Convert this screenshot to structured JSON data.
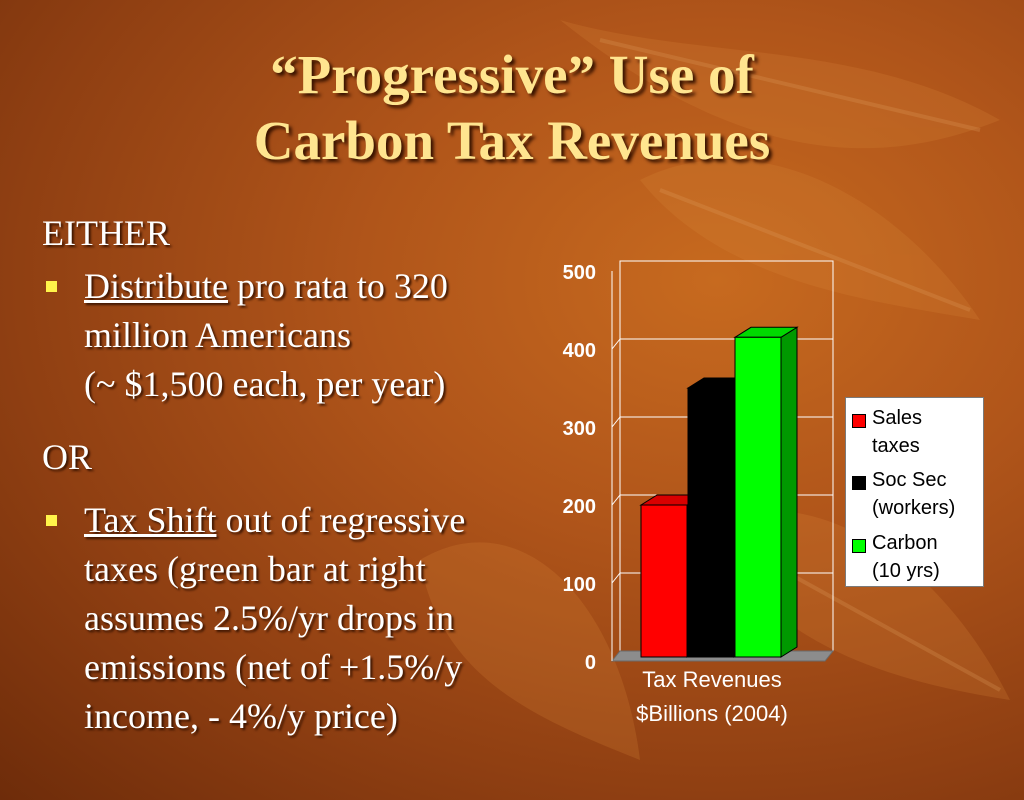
{
  "slide": {
    "title_line1": "“Progressive” Use of",
    "title_line2": "Carbon Tax Revenues",
    "either_label": "EITHER",
    "or_label": "OR",
    "bullet1": {
      "keyword": "Distribute",
      "line1_rest": " pro rata to 320",
      "line2": "million Americans",
      "line3": "(~ $1,500 each, per year)"
    },
    "bullet2": {
      "keyword": "Tax Shift",
      "line1_rest": " out of regressive",
      "line2": "taxes (green bar at right",
      "line3": "assumes 2.5%/yr drops in",
      "line4": "emissions (net of +1.5%/y",
      "line5": "income, - 4%/y price)"
    },
    "colors": {
      "title": "#ffe58f",
      "bullet_marker": "#fff44a"
    }
  },
  "chart_data": {
    "type": "bar",
    "title": "",
    "xlabel_line1": "Tax Revenues",
    "xlabel_line2": "$Billions (2004)",
    "ylabel": "",
    "ylim": [
      0,
      500
    ],
    "yticks": [
      "0",
      "100",
      "200",
      "300",
      "400",
      "500"
    ],
    "grid": true,
    "legend_position": "right",
    "series": [
      {
        "name_line1": "Sales",
        "name_line2": "taxes",
        "value": 200,
        "color": "#ff0000"
      },
      {
        "name_line1": "Soc Sec",
        "name_line2": "(workers)",
        "value": 350,
        "color": "#000000"
      },
      {
        "name_line1": "Carbon",
        "name_line2": "(10 yrs)",
        "value": 415,
        "color": "#00ff00"
      }
    ]
  }
}
